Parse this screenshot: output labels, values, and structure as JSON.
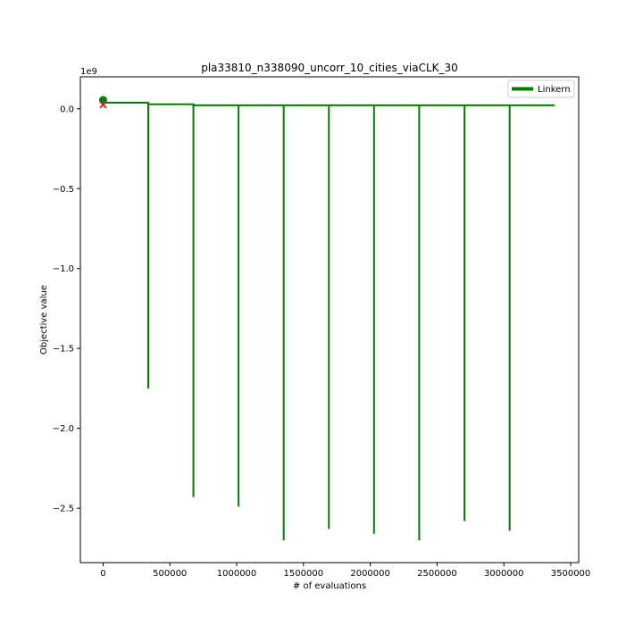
{
  "chart_data": {
    "type": "line",
    "title": "pla33810_n338090_uncorr_10_cities_viaCLK_30",
    "xlabel": "# of evaluations",
    "ylabel": "Objective value",
    "y_offset_text": "1e9",
    "xlim": [
      -170000,
      3560000
    ],
    "ylim": [
      -2.84,
      0.2
    ],
    "xticks": [
      0,
      500000,
      1000000,
      1500000,
      2000000,
      2500000,
      3000000,
      3500000
    ],
    "xtick_labels": [
      "0",
      "500000",
      "1000000",
      "1500000",
      "2000000",
      "2500000",
      "3000000",
      "3500000"
    ],
    "yticks": [
      0.0,
      -0.5,
      -1.0,
      -1.5,
      -2.0,
      -2.5
    ],
    "ytick_labels": [
      "0.0",
      "−0.5",
      "−1.0",
      "−1.5",
      "−2.0",
      "−2.5"
    ],
    "grid": false,
    "legend": {
      "position": "top-right",
      "entries": [
        "Linkern"
      ]
    },
    "series": [
      {
        "name": "Linkern",
        "color": "#008000",
        "steps": [
          {
            "x_start": 0,
            "x_end": 338000,
            "y": 0.038
          },
          {
            "x_start": 338000,
            "x_end": 676000,
            "y": 0.028
          },
          {
            "x_start": 676000,
            "x_end": 3381000,
            "y": 0.022
          }
        ],
        "dips": [
          {
            "x": 338000,
            "y": -1.75
          },
          {
            "x": 676000,
            "y": -2.43
          },
          {
            "x": 1014000,
            "y": -2.49
          },
          {
            "x": 1352000,
            "y": -2.7
          },
          {
            "x": 1690000,
            "y": -2.63
          },
          {
            "x": 2028000,
            "y": -2.66
          },
          {
            "x": 2366000,
            "y": -2.7
          },
          {
            "x": 2705000,
            "y": -2.58
          },
          {
            "x": 3043000,
            "y": -2.64
          }
        ]
      }
    ],
    "markers": [
      {
        "type": "circle",
        "color": "#008000",
        "x": 0,
        "y": 0.055
      },
      {
        "type": "x",
        "color": "#d62728",
        "x": 0,
        "y": 0.025
      }
    ]
  }
}
